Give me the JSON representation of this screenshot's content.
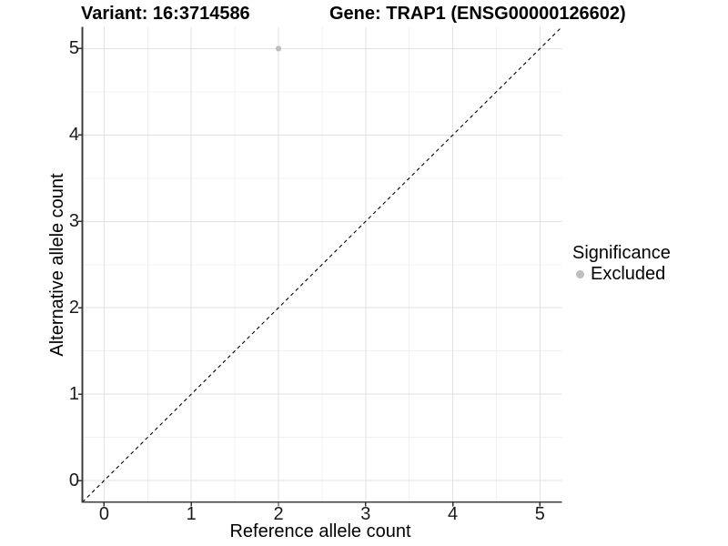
{
  "chart_data": {
    "type": "scatter",
    "title_left": "Variant: 16:3714586",
    "title_right": "Gene: TRAP1 (ENSG00000126602)",
    "xlabel": "Reference allele count",
    "ylabel": "Alternative allele count",
    "xlim": [
      -0.25,
      5.25
    ],
    "ylim": [
      -0.25,
      5.25
    ],
    "x_ticks": [
      0,
      1,
      2,
      3,
      4,
      5
    ],
    "y_ticks": [
      0,
      1,
      2,
      3,
      4,
      5
    ],
    "grid": "major+minor",
    "points": [
      {
        "x": 2,
        "y": 5,
        "series": "Excluded"
      }
    ],
    "reference_line": {
      "type": "identity",
      "style": "dashed",
      "color": "#000000"
    },
    "legend": {
      "title": "Significance",
      "position": "right",
      "items": [
        {
          "label": "Excluded",
          "color": "#bebebe",
          "marker": "circle"
        }
      ]
    },
    "colors": {
      "point": "#bebebe",
      "grid_major": "#e2e2e2",
      "grid_minor": "#f0f0f0",
      "axis_line": "#3c3c3c",
      "tick_mark": "#333333",
      "text": "#000000"
    }
  }
}
